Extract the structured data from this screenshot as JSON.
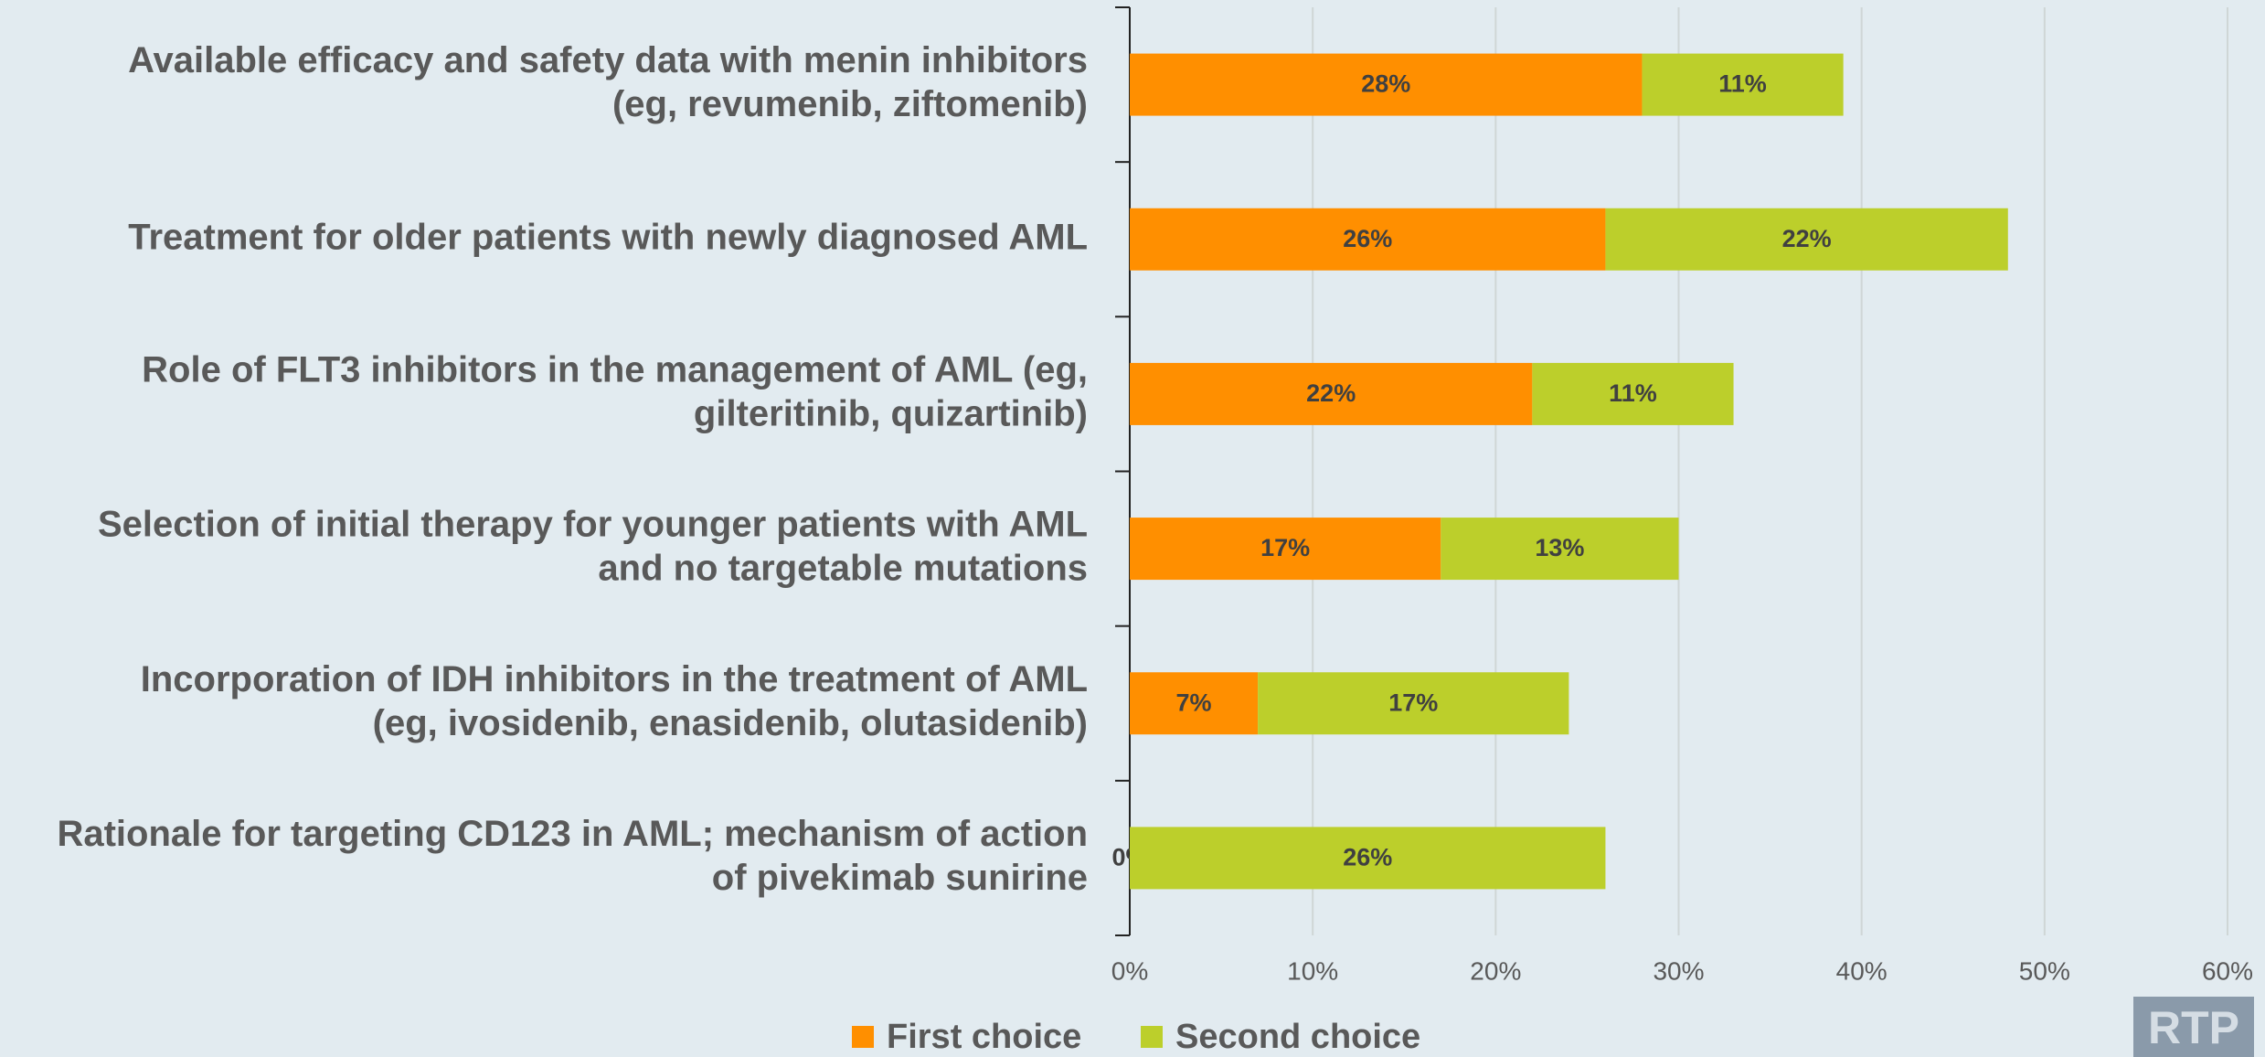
{
  "chart_data": {
    "type": "stacked_barh",
    "categories": [
      [
        "Available efficacy and safety data with menin inhibitors",
        "(eg, revumenib, ziftomenib)"
      ],
      [
        "Treatment for older patients with newly diagnosed AML"
      ],
      [
        "Role of FLT3 inhibitors in the management of AML (eg,",
        "gilteritinib, quizartinib)"
      ],
      [
        "Selection of initial therapy for younger patients with AML",
        "and no targetable mutations"
      ],
      [
        "Incorporation of IDH inhibitors in the treatment of AML",
        "(eg, ivosidenib, enasidenib, olutasidenib)"
      ],
      [
        "Rationale for targeting CD123 in AML; mechanism of action",
        "of pivekimab sunirine"
      ]
    ],
    "series": [
      {
        "name": "First choice",
        "color": "#ff8f00",
        "values": [
          28,
          26,
          22,
          17,
          7,
          0
        ],
        "value_labels": [
          "28%",
          "26%",
          "22%",
          "17%",
          "7%",
          "0%"
        ]
      },
      {
        "name": "Second choice",
        "color": "#bccf2b",
        "values": [
          11,
          22,
          11,
          13,
          17,
          26
        ],
        "value_labels": [
          "11%",
          "22%",
          "11%",
          "13%",
          "17%",
          "26%"
        ]
      }
    ],
    "xlim": [
      0,
      60
    ],
    "xticks": [
      {
        "value": 0,
        "label": "0%"
      },
      {
        "value": 10,
        "label": "10%"
      },
      {
        "value": 20,
        "label": "20%"
      },
      {
        "value": 30,
        "label": "30%"
      },
      {
        "value": 40,
        "label": "40%"
      },
      {
        "value": 50,
        "label": "50%"
      },
      {
        "value": 60,
        "label": "60%"
      }
    ],
    "grid": true,
    "legend": "bottom"
  },
  "logo": "RTP"
}
